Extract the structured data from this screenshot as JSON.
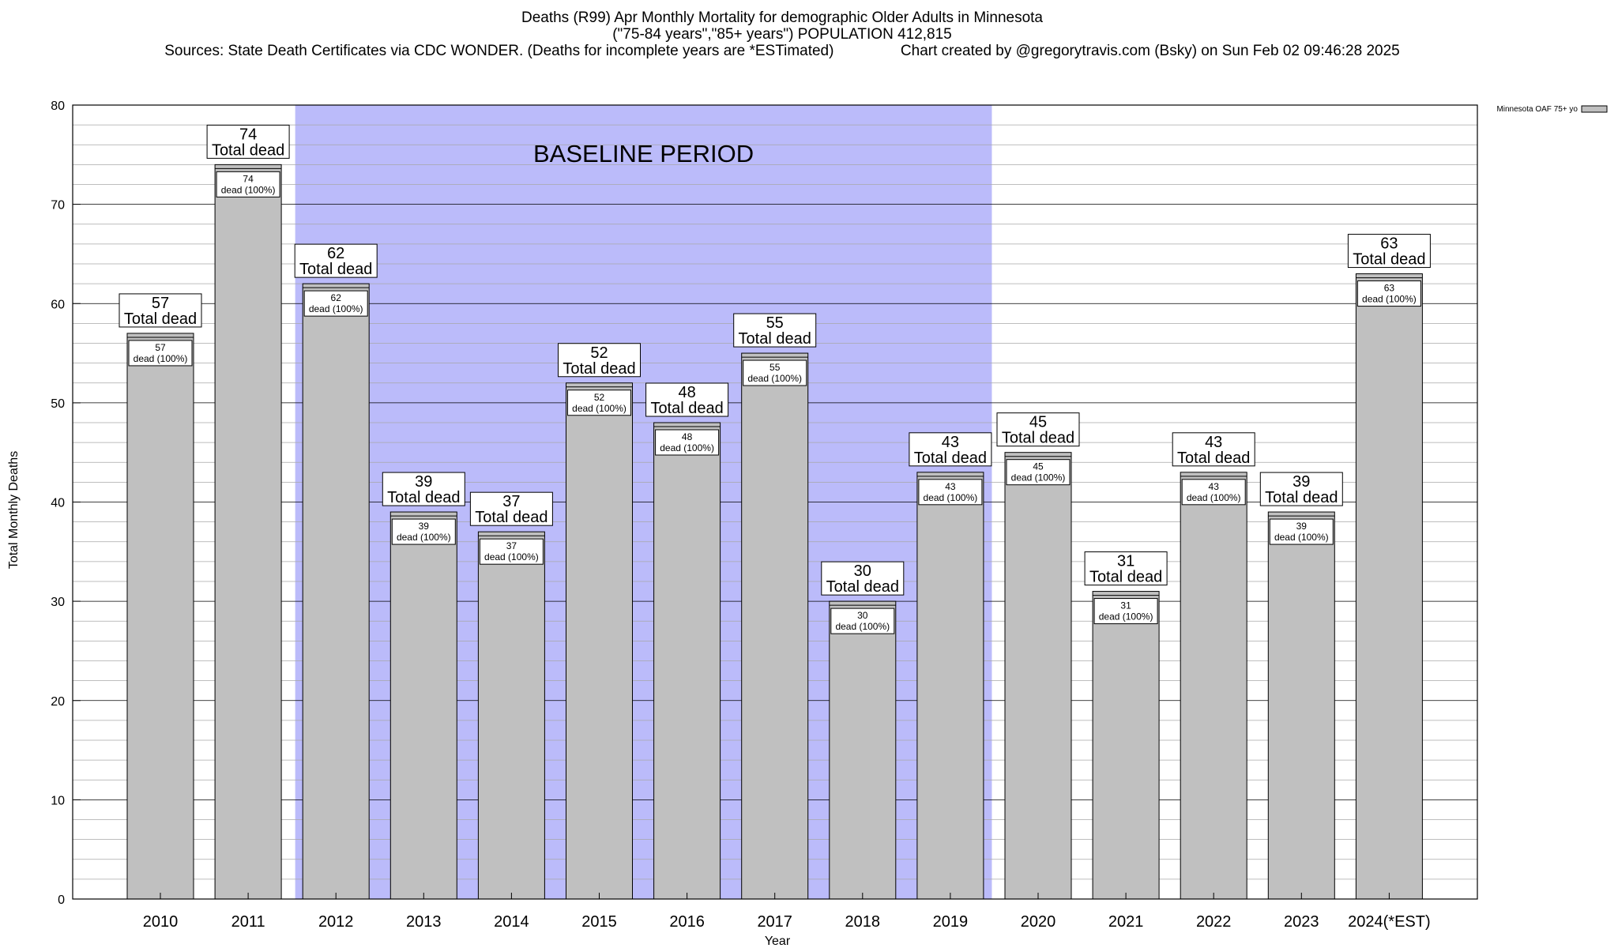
{
  "titles": {
    "line1": "Deaths (R99) Apr Monthly Mortality for demographic Older Adults in Minnesota",
    "line2": "(\"75-84 years\",\"85+ years\") POPULATION 412,815",
    "line3": "Sources: State Death Certificates via CDC WONDER. (Deaths for incomplete years are *ESTimated)                Chart created by @gregorytravis.com (Bsky) on Sun Feb 02 09:46:28 2025"
  },
  "colors": {
    "bar_fill": "#c0c0c0",
    "bar_stroke": "#000000",
    "baseline_fill": "#bbbbfa",
    "grid": "#a8a8a8"
  },
  "chart_data": {
    "type": "bar",
    "title": "Deaths (R99) Apr Monthly Mortality for demographic Older Adults in Minnesota",
    "xlabel": "Year",
    "ylabel": "Total Monthly Deaths",
    "ylim": [
      0,
      80
    ],
    "yticks": [
      0,
      10,
      20,
      30,
      40,
      50,
      60,
      70,
      80
    ],
    "grid": true,
    "legend": {
      "position": "top-right",
      "entries": [
        "Minnesota OAF 75+ yo"
      ]
    },
    "baseline_period": {
      "label": "BASELINE PERIOD",
      "start_category": "2012",
      "end_category": "2019"
    },
    "categories": [
      "2010",
      "2011",
      "2012",
      "2013",
      "2014",
      "2015",
      "2016",
      "2017",
      "2018",
      "2019",
      "2020",
      "2021",
      "2022",
      "2023",
      "2024(*EST)"
    ],
    "series": [
      {
        "name": "Minnesota OAF 75+ yo",
        "values": [
          57,
          74,
          62,
          39,
          37,
          52,
          48,
          55,
          30,
          43,
          45,
          31,
          43,
          39,
          63
        ]
      }
    ],
    "top_label_suffix": "Total dead",
    "inner_label_suffix": "dead (100%)"
  }
}
